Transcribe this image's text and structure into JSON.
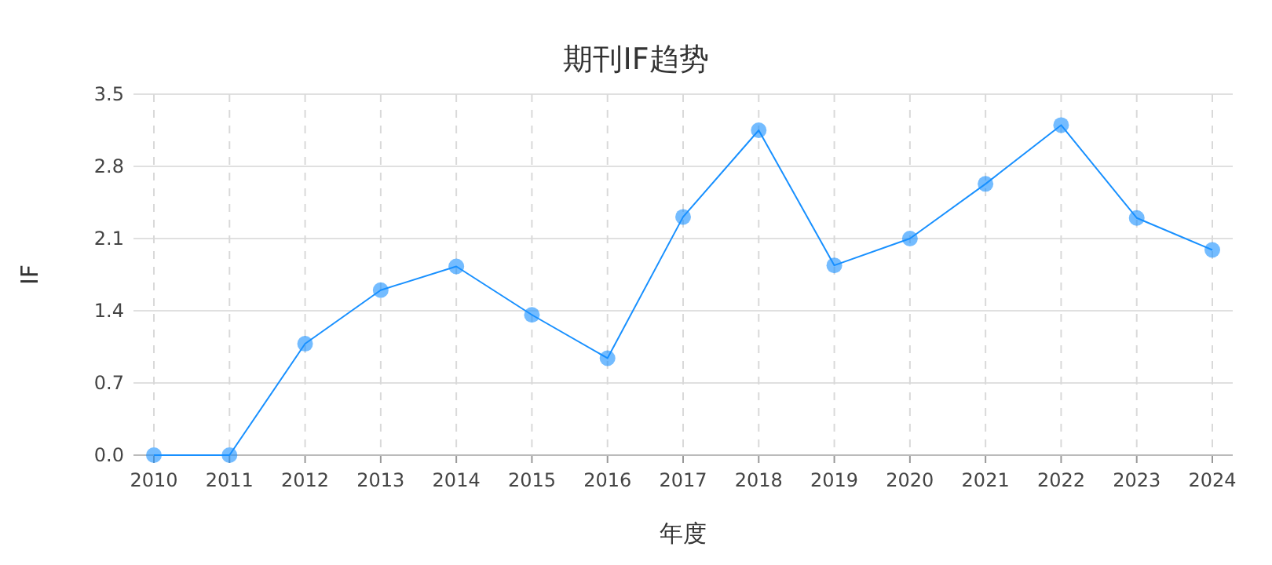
{
  "chart_data": {
    "type": "line",
    "title": "期刊IF趋势",
    "xlabel": "年度",
    "ylabel": "IF",
    "categories": [
      "2010",
      "2011",
      "2012",
      "2013",
      "2014",
      "2015",
      "2016",
      "2017",
      "2018",
      "2019",
      "2020",
      "2021",
      "2022",
      "2023",
      "2024"
    ],
    "series": [
      {
        "color": "#1890ff",
        "values": [
          0,
          0,
          1.08,
          1.6,
          1.83,
          1.36,
          0.94,
          2.31,
          3.15,
          1.84,
          2.1,
          2.63,
          3.2,
          2.3,
          1.99
        ]
      }
    ],
    "ylim": [
      0,
      3.5
    ],
    "yticks": [
      {
        "value": 0,
        "label": "0.0"
      },
      {
        "value": 0.7,
        "label": "0.7"
      },
      {
        "value": 1.4,
        "label": "1.4"
      },
      {
        "value": 2.1,
        "label": "2.1"
      },
      {
        "value": 2.8,
        "label": "2.8"
      },
      {
        "value": 3.5,
        "label": "3.5"
      }
    ],
    "grid": true,
    "marker": "circle",
    "line_style": "solid"
  }
}
